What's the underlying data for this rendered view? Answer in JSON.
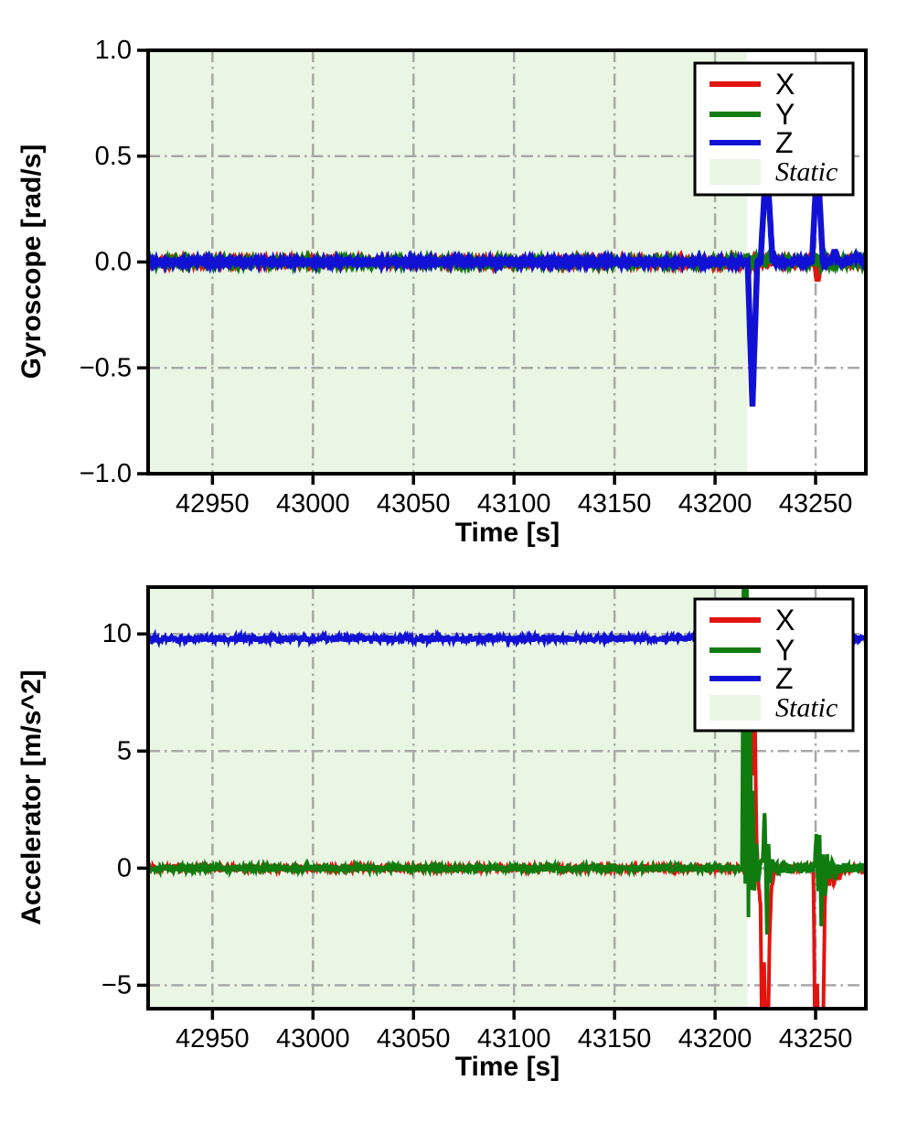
{
  "colors": {
    "x_series": "#e11410",
    "y_series": "#107c10",
    "z_series": "#1111d6",
    "static_fill": "#e9f6e4",
    "grid": "#a8a8a8",
    "axis": "#000000",
    "legend_bg": "#ffffff"
  },
  "chart_data": [
    {
      "type": "line",
      "title": "",
      "xlabel": "Time [s]",
      "ylabel": "Gyroscope [rad/s]",
      "xlim": [
        42918,
        43275
      ],
      "ylim": [
        -1.0,
        1.0
      ],
      "grid": true,
      "grid_style": "dash-dot",
      "xticks": {
        "values": [
          42950,
          43000,
          43050,
          43100,
          43150,
          43200,
          43250
        ],
        "labels": [
          "42950",
          "43000",
          "43050",
          "43100",
          "43150",
          "43200",
          "43250"
        ]
      },
      "yticks": {
        "values": [
          1.0,
          0.5,
          0.0,
          -0.5,
          -1.0
        ],
        "labels": [
          "1.0",
          "0.5",
          "0.0",
          "−0.5",
          "−1.0"
        ]
      },
      "static_region": {
        "label": "Static",
        "t_start": 42918,
        "t_end": 43216
      },
      "legend": {
        "position": "upper right",
        "entries": [
          {
            "label": "X",
            "type": "line",
            "color_key": "x_series"
          },
          {
            "label": "Y",
            "type": "line",
            "color_key": "y_series"
          },
          {
            "label": "Z",
            "type": "line",
            "color_key": "z_series"
          },
          {
            "label": "Static",
            "type": "patch",
            "color_key": "static_fill"
          }
        ]
      },
      "series": [
        {
          "name": "X",
          "color_key": "x_series",
          "baseline": 0,
          "seed": 11,
          "noise": [
            [
              42918,
              43275,
              0.005
            ]
          ],
          "keypoints": [
            [
              43216.0,
              0
            ],
            [
              43217.0,
              -0.02
            ],
            [
              43218.0,
              0
            ],
            [
              43249.7,
              0
            ],
            [
              43251.0,
              -0.095
            ],
            [
              43252.4,
              0
            ]
          ]
        },
        {
          "name": "Y",
          "color_key": "y_series",
          "baseline": 0,
          "seed": 22,
          "noise": [
            [
              42918,
              43275,
              0.006
            ]
          ],
          "keypoints": [
            [
              43214.6,
              0
            ],
            [
              43216.0,
              0.03
            ],
            [
              43217.6,
              -0.025
            ],
            [
              43219.4,
              0.025
            ],
            [
              43221.0,
              0
            ],
            [
              43222.8,
              0.03
            ],
            [
              43224.6,
              -0.02
            ],
            [
              43226.4,
              0.028
            ],
            [
              43228.0,
              0
            ],
            [
              43250.0,
              0
            ],
            [
              43251.5,
              0.032
            ],
            [
              43253.0,
              -0.025
            ],
            [
              43254.6,
              0.028
            ],
            [
              43256.0,
              0
            ]
          ]
        },
        {
          "name": "Z",
          "color_key": "z_series",
          "baseline": 0,
          "seed": 33,
          "noise": [
            [
              42918,
              43275,
              0.005
            ]
          ],
          "keypoints": [
            [
              43216.2,
              0
            ],
            [
              43218.6,
              -0.68
            ],
            [
              43221.0,
              0
            ],
            [
              43222.6,
              0
            ],
            [
              43225.6,
              0.5
            ],
            [
              43228.6,
              0
            ],
            [
              43248.2,
              0
            ],
            [
              43250.9,
              0.5
            ],
            [
              43253.6,
              0
            ],
            [
              43257.6,
              0
            ],
            [
              43259.4,
              0.055
            ],
            [
              43261.4,
              0
            ],
            [
              43267.5,
              0
            ],
            [
              43268.5,
              0.025
            ],
            [
              43271.5,
              0.025
            ],
            [
              43272.3,
              0
            ]
          ]
        }
      ]
    },
    {
      "type": "line",
      "title": "",
      "xlabel": "Time [s]",
      "ylabel": "Accelerator [m/s^2]",
      "xlim": [
        42918,
        43275
      ],
      "ylim": [
        -6,
        12
      ],
      "grid": true,
      "grid_style": "dash-dot",
      "xticks": {
        "values": [
          42950,
          43000,
          43050,
          43100,
          43150,
          43200,
          43250
        ],
        "labels": [
          "42950",
          "43000",
          "43050",
          "43100",
          "43150",
          "43200",
          "43250"
        ]
      },
      "yticks": {
        "values": [
          10,
          5,
          0,
          -5
        ],
        "labels": [
          "10",
          "5",
          "0",
          "−5"
        ]
      },
      "static_region": {
        "label": "Static",
        "t_start": 42918,
        "t_end": 43216
      },
      "legend": {
        "position": "upper right",
        "entries": [
          {
            "label": "X",
            "type": "line",
            "color_key": "x_series"
          },
          {
            "label": "Y",
            "type": "line",
            "color_key": "y_series"
          },
          {
            "label": "Z",
            "type": "line",
            "color_key": "z_series"
          },
          {
            "label": "Static",
            "type": "patch",
            "color_key": "static_fill"
          }
        ]
      },
      "series": [
        {
          "name": "X",
          "color_key": "x_series",
          "baseline": 0,
          "seed": 44,
          "noise": [
            [
              42918,
              43230,
              0.1
            ],
            [
              43230,
              43275,
              0.13
            ]
          ],
          "keypoints": [
            [
              43214.8,
              0
            ],
            [
              43215.6,
              1.5
            ],
            [
              43216.4,
              8
            ],
            [
              43217.2,
              4
            ],
            [
              43218.0,
              7.6
            ],
            [
              43218.9,
              3.6
            ],
            [
              43219.7,
              7.2
            ],
            [
              43220.6,
              1.4
            ],
            [
              43221.6,
              -0.7
            ],
            [
              43222.6,
              -1.5
            ],
            [
              43223.4,
              -8
            ],
            [
              43224.4,
              -4
            ],
            [
              43225.2,
              -7.6
            ],
            [
              43226.2,
              -7.9
            ],
            [
              43227.1,
              -3
            ],
            [
              43228.0,
              -0.9
            ],
            [
              43229.2,
              -0.3
            ],
            [
              43230.5,
              0
            ],
            [
              43248.9,
              0
            ],
            [
              43249.8,
              -8
            ],
            [
              43250.8,
              -5
            ],
            [
              43251.6,
              -7.9
            ],
            [
              43252.6,
              -7.4
            ],
            [
              43253.6,
              -8
            ],
            [
              43254.6,
              -1.4
            ],
            [
              43255.6,
              -0.35
            ],
            [
              43256.8,
              -0.65
            ],
            [
              43258.0,
              -0.2
            ],
            [
              43259.2,
              -0.55
            ],
            [
              43260.6,
              -0.15
            ],
            [
              43261.8,
              -0.5
            ],
            [
              43263.2,
              0
            ]
          ]
        },
        {
          "name": "Y",
          "color_key": "y_series",
          "baseline": 0,
          "seed": 55,
          "noise": [
            [
              42918,
              43230,
              0.14
            ],
            [
              43230,
              43275,
              0.22
            ]
          ],
          "keypoints": [
            [
              43213.4,
              0
            ],
            [
              43214.2,
              13
            ],
            [
              43215.1,
              -2.5
            ],
            [
              43215.8,
              12.5
            ],
            [
              43216.6,
              -2.2
            ],
            [
              43217.3,
              11.5
            ],
            [
              43218.1,
              -1.6
            ],
            [
              43218.8,
              3.2
            ],
            [
              43219.6,
              -1
            ],
            [
              43220.5,
              1.1
            ],
            [
              43221.5,
              -0.5
            ],
            [
              43222.8,
              0.3
            ],
            [
              43223.6,
              0.2
            ],
            [
              43224.7,
              2.5
            ],
            [
              43225.8,
              -2.7
            ],
            [
              43226.6,
              1
            ],
            [
              43227.4,
              -0.7
            ],
            [
              43228.4,
              0.4
            ],
            [
              43229.5,
              0
            ],
            [
              43249.4,
              0
            ],
            [
              43250.4,
              1.55
            ],
            [
              43251.3,
              -1.3
            ],
            [
              43252.0,
              1.2
            ],
            [
              43252.8,
              -2.3
            ],
            [
              43253.8,
              0.6
            ],
            [
              43254.8,
              -1.1
            ],
            [
              43255.8,
              0.4
            ],
            [
              43257.0,
              -0.5
            ],
            [
              43258.4,
              0.25
            ],
            [
              43259.8,
              -0.3
            ],
            [
              43261.2,
              0
            ]
          ]
        },
        {
          "name": "Z",
          "color_key": "z_series",
          "baseline": 9.8,
          "seed": 66,
          "noise": [
            [
              42918,
              43275,
              0.14
            ]
          ],
          "keypoints": []
        }
      ]
    }
  ]
}
